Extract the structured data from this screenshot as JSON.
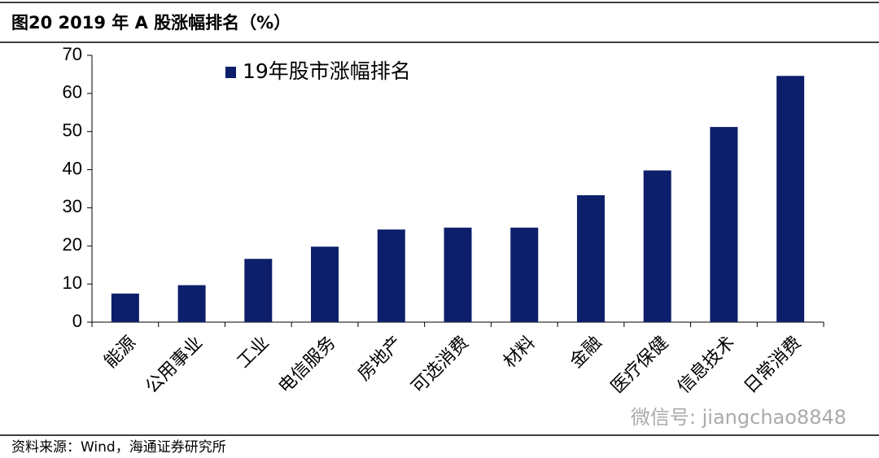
{
  "chart_data": {
    "type": "bar",
    "title": "图20 2019 年 A 股涨幅排名（%）",
    "source": "资料来源：Wind，海通证券研究所",
    "watermark": "微信号: jiangchao8848",
    "categories": [
      "能源",
      "公用事业",
      "工业",
      "电信服务",
      "房地产",
      "可选消费",
      "材料",
      "金融",
      "医疗保健",
      "信息技术",
      "日常消费"
    ],
    "series": [
      {
        "name": "19年股市涨幅排名",
        "color": "#0d1f6b",
        "values": [
          7.5,
          9.7,
          16.6,
          19.8,
          24.3,
          24.8,
          24.8,
          33.3,
          39.8,
          51.2,
          64.6
        ]
      }
    ],
    "ylim": [
      0,
      70
    ],
    "yticks": [
      0,
      10,
      20,
      30,
      40,
      50,
      60,
      70
    ],
    "grid": false,
    "legend": "top-left"
  }
}
